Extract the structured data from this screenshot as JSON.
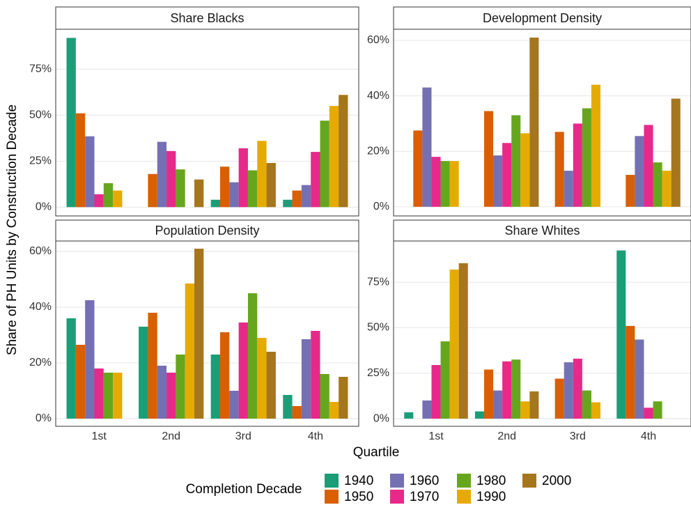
{
  "y_label": "Share of PH Units by Construction Decade",
  "x_label": "Quartile",
  "legend_title": "Completion Decade",
  "chart_data": [
    {
      "type": "bar",
      "title": "Share Blacks",
      "grid": true,
      "categories": [
        "1st",
        "2nd",
        "3rd",
        "4th"
      ],
      "ylim": [
        -4.8,
        96.7
      ],
      "yticks": [
        {
          "value": 0,
          "label": "0%"
        },
        {
          "value": 25,
          "label": "25%"
        },
        {
          "value": 50,
          "label": "50%"
        },
        {
          "value": 75,
          "label": "75%"
        }
      ],
      "series": [
        {
          "name": "1940",
          "color": "#1b9e77",
          "values": [
            92,
            null,
            4,
            4
          ]
        },
        {
          "name": "1950",
          "color": "#d95f02",
          "values": [
            51,
            18,
            22,
            9
          ]
        },
        {
          "name": "1960",
          "color": "#7570b3",
          "values": [
            38.5,
            35.5,
            13.5,
            12
          ]
        },
        {
          "name": "1970",
          "color": "#e7298a",
          "values": [
            7,
            30.5,
            32,
            30
          ]
        },
        {
          "name": "1980",
          "color": "#66a61e",
          "values": [
            13,
            20.5,
            20,
            47
          ]
        },
        {
          "name": "1990",
          "color": "#e6ab02",
          "values": [
            9,
            null,
            36,
            55
          ]
        },
        {
          "name": "2000",
          "color": "#a6761d",
          "values": [
            null,
            15,
            24,
            61
          ]
        }
      ]
    },
    {
      "type": "bar",
      "title": "Development Density",
      "grid": true,
      "categories": [
        "1st",
        "2nd",
        "3rd",
        "4th"
      ],
      "ylim": [
        -3.3,
        64
      ],
      "yticks": [
        {
          "value": 0,
          "label": "0%"
        },
        {
          "value": 20,
          "label": "20%"
        },
        {
          "value": 40,
          "label": "40%"
        },
        {
          "value": 60,
          "label": "60%"
        }
      ],
      "series": [
        {
          "name": "1940",
          "color": "#1b9e77",
          "values": [
            null,
            null,
            null,
            null
          ]
        },
        {
          "name": "1950",
          "color": "#d95f02",
          "values": [
            27.5,
            34.5,
            27,
            11.5
          ]
        },
        {
          "name": "1960",
          "color": "#7570b3",
          "values": [
            43,
            18.5,
            13,
            25.5
          ]
        },
        {
          "name": "1970",
          "color": "#e7298a",
          "values": [
            18,
            23,
            30,
            29.5
          ]
        },
        {
          "name": "1980",
          "color": "#66a61e",
          "values": [
            16.5,
            33,
            35.5,
            16
          ]
        },
        {
          "name": "1990",
          "color": "#e6ab02",
          "values": [
            16.5,
            26.5,
            44,
            13
          ]
        },
        {
          "name": "2000",
          "color": "#a6761d",
          "values": [
            null,
            61,
            null,
            39
          ]
        }
      ]
    },
    {
      "type": "bar",
      "title": "Population Density",
      "grid": true,
      "categories": [
        "1st",
        "2nd",
        "3rd",
        "4th"
      ],
      "ylim": [
        -2.75,
        63.75
      ],
      "yticks": [
        {
          "value": 0,
          "label": "0%"
        },
        {
          "value": 20,
          "label": "20%"
        },
        {
          "value": 40,
          "label": "40%"
        },
        {
          "value": 60,
          "label": "60%"
        }
      ],
      "series": [
        {
          "name": "1940",
          "color": "#1b9e77",
          "values": [
            36,
            33,
            23,
            8.5
          ]
        },
        {
          "name": "1950",
          "color": "#d95f02",
          "values": [
            26.5,
            38,
            31,
            4.5
          ]
        },
        {
          "name": "1960",
          "color": "#7570b3",
          "values": [
            42.5,
            19,
            10,
            28.5
          ]
        },
        {
          "name": "1970",
          "color": "#e7298a",
          "values": [
            18,
            16.5,
            34.5,
            31.5
          ]
        },
        {
          "name": "1980",
          "color": "#66a61e",
          "values": [
            16.5,
            23,
            45,
            16
          ]
        },
        {
          "name": "1990",
          "color": "#e6ab02",
          "values": [
            16.5,
            48.5,
            29,
            6
          ]
        },
        {
          "name": "2000",
          "color": "#a6761d",
          "values": [
            null,
            61,
            24,
            15
          ]
        }
      ]
    },
    {
      "type": "bar",
      "title": "Share Whites",
      "grid": true,
      "categories": [
        "1st",
        "2nd",
        "3rd",
        "4th"
      ],
      "ylim": [
        -4.2,
        97.7
      ],
      "yticks": [
        {
          "value": 0,
          "label": "0%"
        },
        {
          "value": 25,
          "label": "25%"
        },
        {
          "value": 50,
          "label": "50%"
        },
        {
          "value": 75,
          "label": "75%"
        }
      ],
      "series": [
        {
          "name": "1940",
          "color": "#1b9e77",
          "values": [
            3.5,
            4,
            null,
            92.5
          ]
        },
        {
          "name": "1950",
          "color": "#d95f02",
          "values": [
            null,
            27,
            22,
            51
          ]
        },
        {
          "name": "1960",
          "color": "#7570b3",
          "values": [
            10,
            15.5,
            31,
            43.5
          ]
        },
        {
          "name": "1970",
          "color": "#e7298a",
          "values": [
            29.5,
            31.5,
            33,
            6
          ]
        },
        {
          "name": "1980",
          "color": "#66a61e",
          "values": [
            42.5,
            32.5,
            15.5,
            9.5
          ]
        },
        {
          "name": "1990",
          "color": "#e6ab02",
          "values": [
            82,
            9.5,
            9,
            null
          ]
        },
        {
          "name": "2000",
          "color": "#a6761d",
          "values": [
            85.5,
            15,
            null,
            null
          ]
        }
      ]
    }
  ]
}
